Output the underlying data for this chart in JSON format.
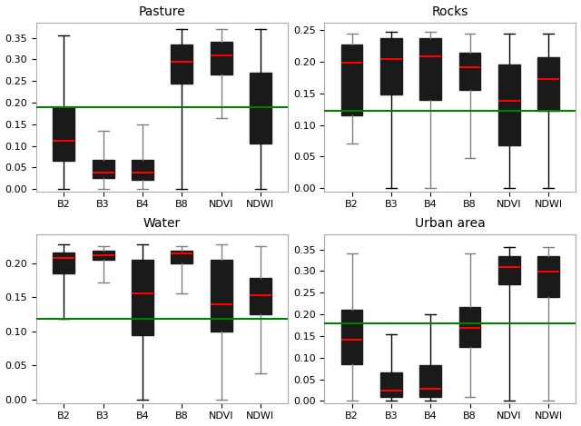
{
  "panels": [
    {
      "title": "Pasture",
      "green_line": 0.19,
      "ylim": [
        -0.005,
        0.385
      ],
      "yticks": [
        0.0,
        0.05,
        0.1,
        0.15,
        0.2,
        0.25,
        0.3,
        0.35
      ],
      "categories": [
        "B2",
        "B3",
        "B4",
        "B8",
        "NDVI",
        "NDWI"
      ],
      "boxes": [
        {
          "q1": 0.065,
          "median": 0.112,
          "q3": 0.19,
          "whislo": 0.0,
          "whishi": 0.355,
          "whis_color": "black"
        },
        {
          "q1": 0.025,
          "median": 0.038,
          "q3": 0.068,
          "whislo": 0.0,
          "whishi": 0.135,
          "whis_color": "gray"
        },
        {
          "q1": 0.022,
          "median": 0.038,
          "q3": 0.068,
          "whislo": 0.0,
          "whishi": 0.15,
          "whis_color": "gray"
        },
        {
          "q1": 0.245,
          "median": 0.295,
          "q3": 0.335,
          "whislo": 0.0,
          "whishi": 0.37,
          "whis_color": "black"
        },
        {
          "q1": 0.265,
          "median": 0.31,
          "q3": 0.34,
          "whislo": 0.165,
          "whishi": 0.37,
          "whis_color": "gray"
        },
        {
          "q1": 0.105,
          "median": 0.19,
          "q3": 0.27,
          "whislo": 0.0,
          "whishi": 0.37,
          "whis_color": "black"
        }
      ]
    },
    {
      "title": "Rocks",
      "green_line": 0.123,
      "ylim": [
        -0.005,
        0.262
      ],
      "yticks": [
        0.0,
        0.05,
        0.1,
        0.15,
        0.2,
        0.25
      ],
      "categories": [
        "B2",
        "B3",
        "B4",
        "B8",
        "NDVI",
        "NDWI"
      ],
      "boxes": [
        {
          "q1": 0.115,
          "median": 0.198,
          "q3": 0.228,
          "whislo": 0.07,
          "whishi": 0.245,
          "whis_color": "gray"
        },
        {
          "q1": 0.148,
          "median": 0.204,
          "q3": 0.237,
          "whislo": 0.0,
          "whishi": 0.248,
          "whis_color": "black"
        },
        {
          "q1": 0.14,
          "median": 0.208,
          "q3": 0.237,
          "whislo": 0.0,
          "whishi": 0.247,
          "whis_color": "gray"
        },
        {
          "q1": 0.155,
          "median": 0.192,
          "q3": 0.215,
          "whislo": 0.048,
          "whishi": 0.245,
          "whis_color": "gray"
        },
        {
          "q1": 0.068,
          "median": 0.138,
          "q3": 0.196,
          "whislo": 0.0,
          "whishi": 0.245,
          "whis_color": "black"
        },
        {
          "q1": 0.122,
          "median": 0.173,
          "q3": 0.207,
          "whislo": 0.0,
          "whishi": 0.245,
          "whis_color": "black"
        }
      ]
    },
    {
      "title": "Water",
      "green_line": 0.118,
      "ylim": [
        -0.005,
        0.242
      ],
      "yticks": [
        0.0,
        0.05,
        0.1,
        0.15,
        0.2
      ],
      "categories": [
        "B2",
        "B3",
        "B4",
        "B8",
        "NDVI",
        "NDWI"
      ],
      "boxes": [
        {
          "q1": 0.185,
          "median": 0.207,
          "q3": 0.215,
          "whislo": 0.118,
          "whishi": 0.228,
          "whis_color": "black"
        },
        {
          "q1": 0.205,
          "median": 0.212,
          "q3": 0.218,
          "whislo": 0.172,
          "whishi": 0.225,
          "whis_color": "gray"
        },
        {
          "q1": 0.095,
          "median": 0.155,
          "q3": 0.205,
          "whislo": 0.0,
          "whishi": 0.228,
          "whis_color": "black"
        },
        {
          "q1": 0.2,
          "median": 0.214,
          "q3": 0.218,
          "whislo": 0.155,
          "whishi": 0.225,
          "whis_color": "gray"
        },
        {
          "q1": 0.1,
          "median": 0.14,
          "q3": 0.205,
          "whislo": 0.0,
          "whishi": 0.228,
          "whis_color": "gray"
        },
        {
          "q1": 0.125,
          "median": 0.153,
          "q3": 0.178,
          "whislo": 0.038,
          "whishi": 0.225,
          "whis_color": "gray"
        }
      ]
    },
    {
      "title": "Urban area",
      "green_line": 0.18,
      "ylim": [
        -0.005,
        0.385
      ],
      "yticks": [
        0.0,
        0.05,
        0.1,
        0.15,
        0.2,
        0.25,
        0.3,
        0.35
      ],
      "categories": [
        "B2",
        "B3",
        "B4",
        "B8",
        "NDVI",
        "NDWI"
      ],
      "boxes": [
        {
          "q1": 0.085,
          "median": 0.142,
          "q3": 0.21,
          "whislo": 0.0,
          "whishi": 0.34,
          "whis_color": "gray"
        },
        {
          "q1": 0.01,
          "median": 0.023,
          "q3": 0.065,
          "whislo": 0.0,
          "whishi": 0.155,
          "whis_color": "black"
        },
        {
          "q1": 0.01,
          "median": 0.027,
          "q3": 0.082,
          "whislo": 0.0,
          "whishi": 0.2,
          "whis_color": "black"
        },
        {
          "q1": 0.125,
          "median": 0.168,
          "q3": 0.218,
          "whislo": 0.01,
          "whishi": 0.34,
          "whis_color": "gray"
        },
        {
          "q1": 0.27,
          "median": 0.31,
          "q3": 0.335,
          "whislo": 0.0,
          "whishi": 0.355,
          "whis_color": "black"
        },
        {
          "q1": 0.24,
          "median": 0.298,
          "q3": 0.335,
          "whislo": 0.0,
          "whishi": 0.355,
          "whis_color": "gray"
        }
      ]
    }
  ],
  "box_color": "#4472C4",
  "box_edge_color": "#1a1a1a",
  "median_color": "red",
  "green_line_color": "green",
  "figure_bg": "white"
}
